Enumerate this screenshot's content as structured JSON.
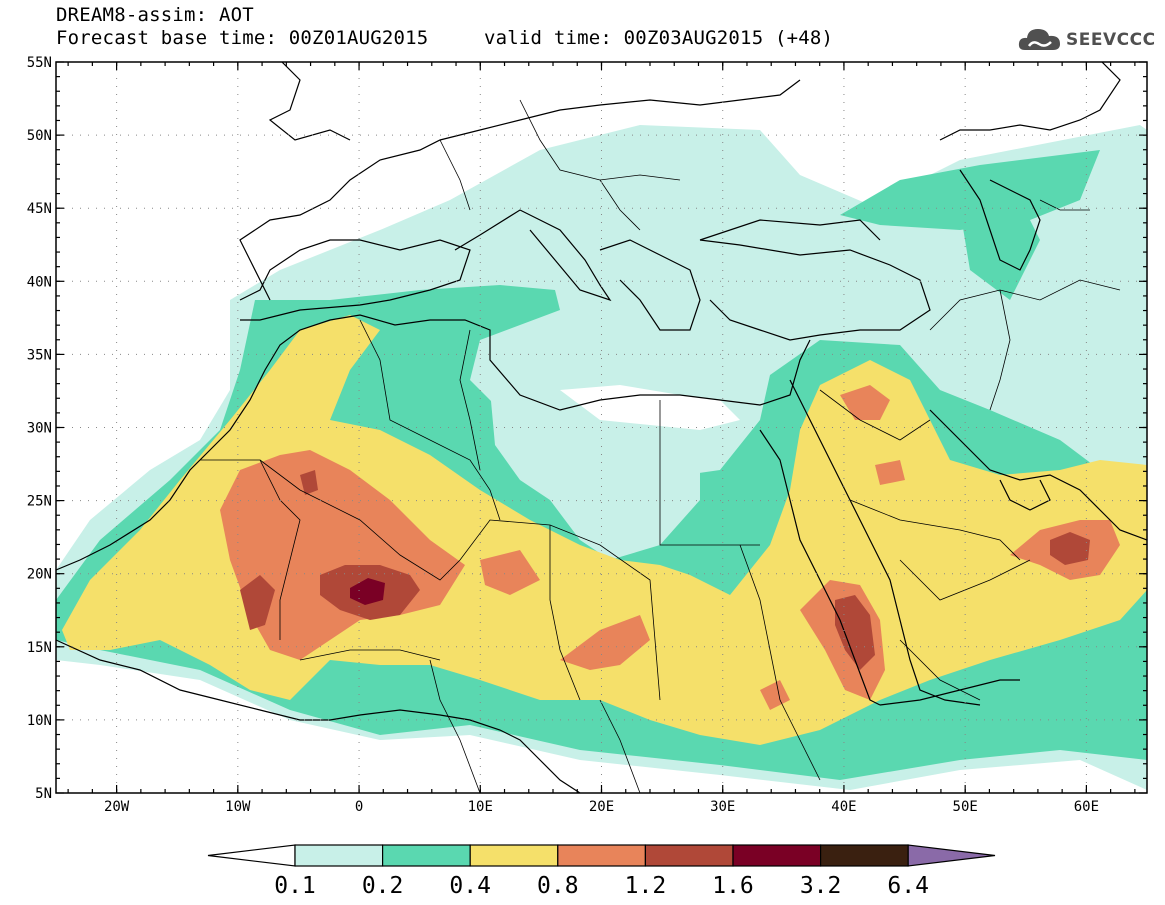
{
  "header": {
    "line1": "DREAM8-assim: AOT",
    "line2": "Forecast base time: 00Z01AUG2015",
    "line3": "valid time: 00Z03AUG2015 (+48)"
  },
  "logo": {
    "text": "SEEVCCC",
    "icon": "cloud-icon"
  },
  "map": {
    "lon_range": [
      -25,
      65
    ],
    "lat_range": [
      5,
      55
    ],
    "x_ticks": [
      "20W",
      "10W",
      "0",
      "10E",
      "20E",
      "30E",
      "40E",
      "50E",
      "60E"
    ],
    "y_ticks": [
      "55N",
      "50N",
      "45N",
      "40N",
      "35N",
      "30N",
      "25N",
      "20N",
      "15N",
      "10N",
      "5N"
    ],
    "grid": "dotted"
  },
  "colorbar": {
    "labels": [
      "0.1",
      "0.2",
      "0.4",
      "0.8",
      "1.2",
      "1.6",
      "3.2",
      "6.4"
    ],
    "colors": [
      "#ffffff",
      "#c8f0e8",
      "#5ad8b0",
      "#f5e06a",
      "#e8845a",
      "#b04838",
      "#7a0025",
      "#3a2010",
      "#8a6aa8"
    ]
  }
}
